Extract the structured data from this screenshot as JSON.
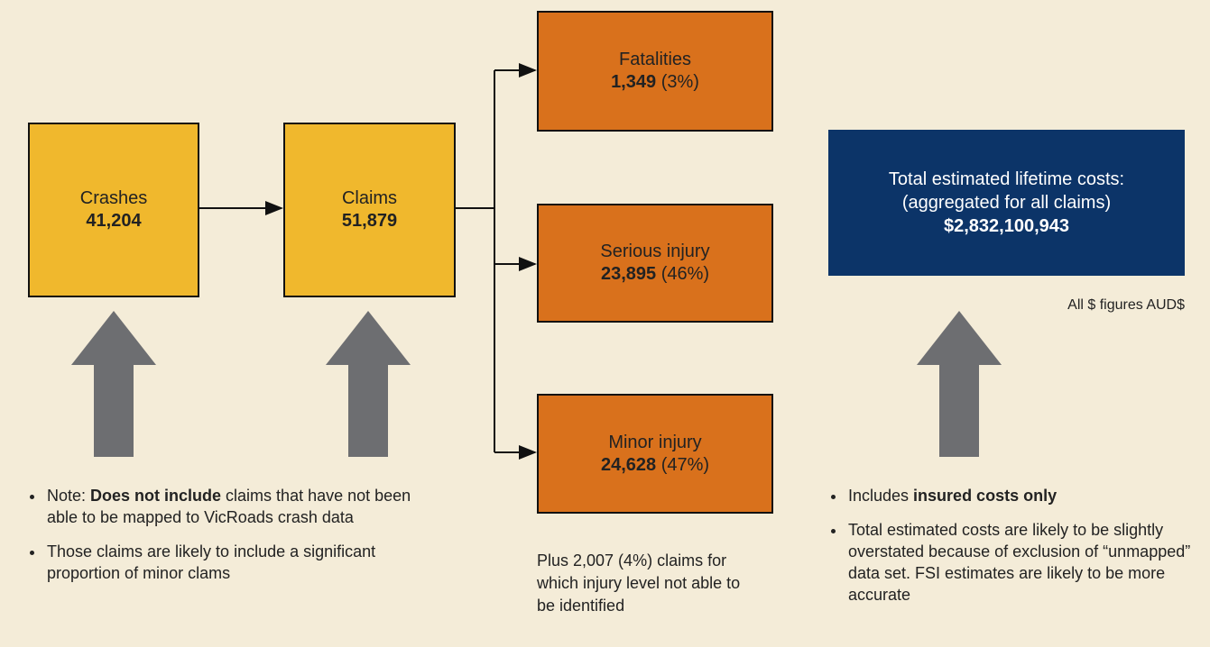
{
  "nodes": [
    {
      "label": "Crashes",
      "value": "41,204"
    },
    {
      "label": "Claims",
      "value": "51,879"
    },
    {
      "label": "Fatalities",
      "value": "1,349",
      "share": "(3%)"
    },
    {
      "label": "Serious injury",
      "value": "23,895",
      "share": "(46%)"
    },
    {
      "label": "Minor injury",
      "value": "24,628",
      "share": "(47%)"
    }
  ],
  "total": {
    "lines": [
      "Total estimated lifetime costs:",
      "(aggregated for all claims)"
    ],
    "value": "$2,832,100,943"
  },
  "currency_note": "All $ figures AUD$",
  "left_notes": [
    {
      "before": "Note: ",
      "bold": "Does not include",
      "after": " claims that have not been able to be mapped to VicRoads crash data"
    },
    {
      "text": "Those claims are likely to include a significant proportion of minor clams"
    }
  ],
  "middle_note": "Plus 2,007 (4%) claims for which injury level not able to be identified",
  "right_notes": [
    {
      "before": "Includes ",
      "bold": "insured costs only"
    },
    {
      "text": "Total estimated costs are likely to be slightly overstated because of exclusion of “unmapped” data set. FSI estimates are likely to be more accurate"
    }
  ]
}
